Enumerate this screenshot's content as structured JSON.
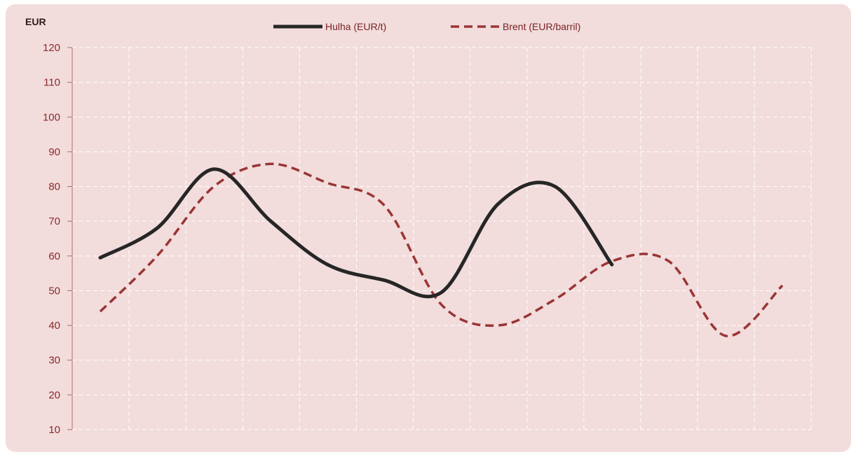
{
  "chart_data": {
    "type": "line",
    "ylabel": "EUR",
    "ylim": [
      10,
      120
    ],
    "yticks": [
      10,
      20,
      30,
      40,
      50,
      60,
      70,
      80,
      90,
      100,
      110,
      120
    ],
    "x": [
      1,
      2,
      3,
      4,
      5,
      6,
      7,
      8,
      9,
      10,
      11,
      12,
      13
    ],
    "grid": true,
    "legend_position": "top-center",
    "series": [
      {
        "name": "Hulha (EUR/t)",
        "color": "#262626",
        "style": "solid",
        "values": [
          59.5,
          68,
          85,
          70,
          57.5,
          53,
          49.5,
          75,
          80,
          57.5,
          null,
          null,
          null
        ]
      },
      {
        "name": "Brent (EUR/barril)",
        "color": "#9a3535",
        "style": "dashed",
        "values": [
          44,
          60,
          80,
          86.5,
          81,
          74.5,
          46,
          40,
          47.5,
          58.5,
          58.5,
          37,
          51.5
        ]
      }
    ]
  }
}
